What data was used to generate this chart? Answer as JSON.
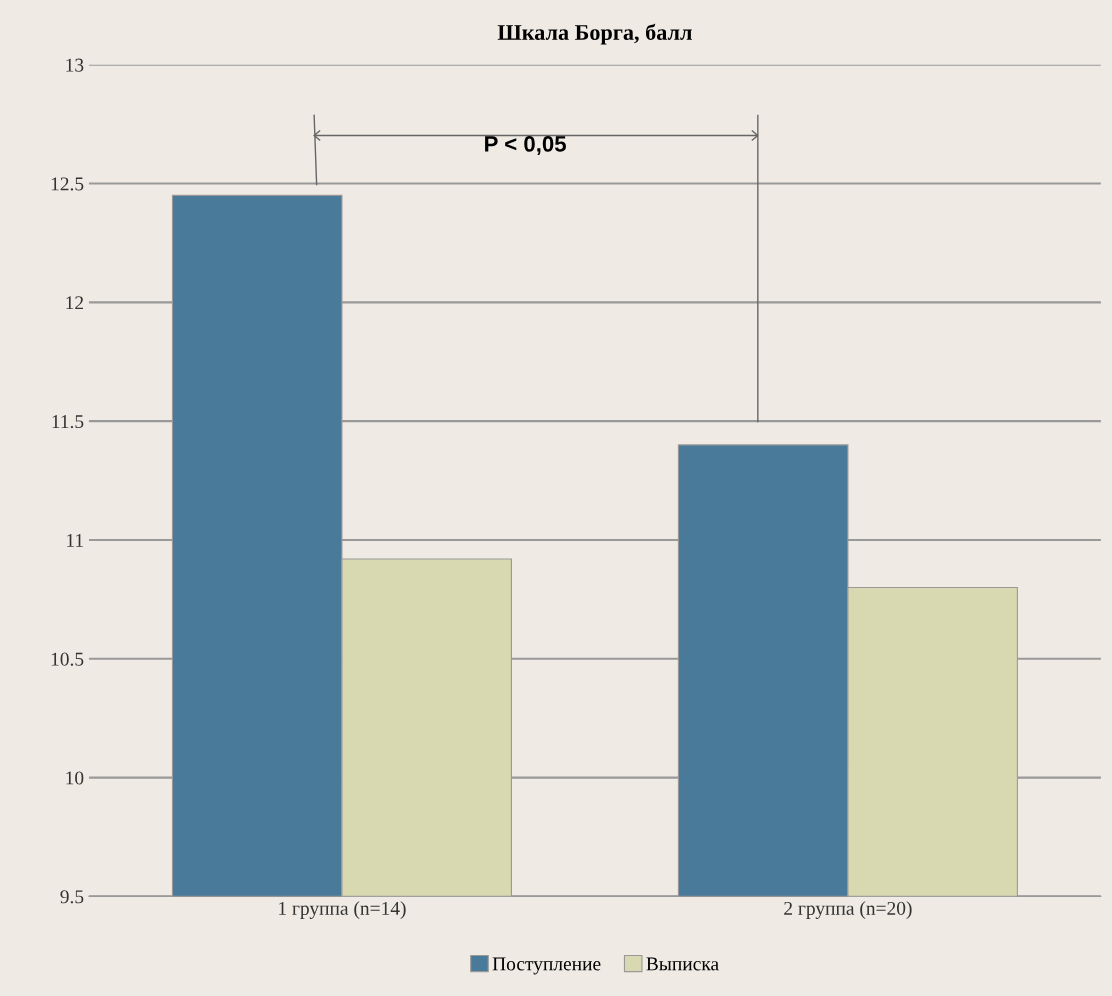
{
  "chart_data": {
    "type": "bar",
    "title": "Шкала Борга, балл",
    "categories": [
      "1 группа (n=14)",
      "2 группа (n=20)"
    ],
    "series": [
      {
        "name": "Поступление",
        "color": "#4a7a99",
        "values": [
          12.45,
          11.4
        ]
      },
      {
        "name": "Выписка",
        "color": "#d8d9b0",
        "values": [
          10.92,
          10.8
        ]
      }
    ],
    "ylim": [
      9.5,
      13
    ],
    "yticks": [
      9.5,
      10,
      10.5,
      11,
      11.5,
      12,
      12.5,
      13
    ],
    "grid": "y",
    "legend": "bottom",
    "annotations": [
      "P < 0,05"
    ]
  }
}
